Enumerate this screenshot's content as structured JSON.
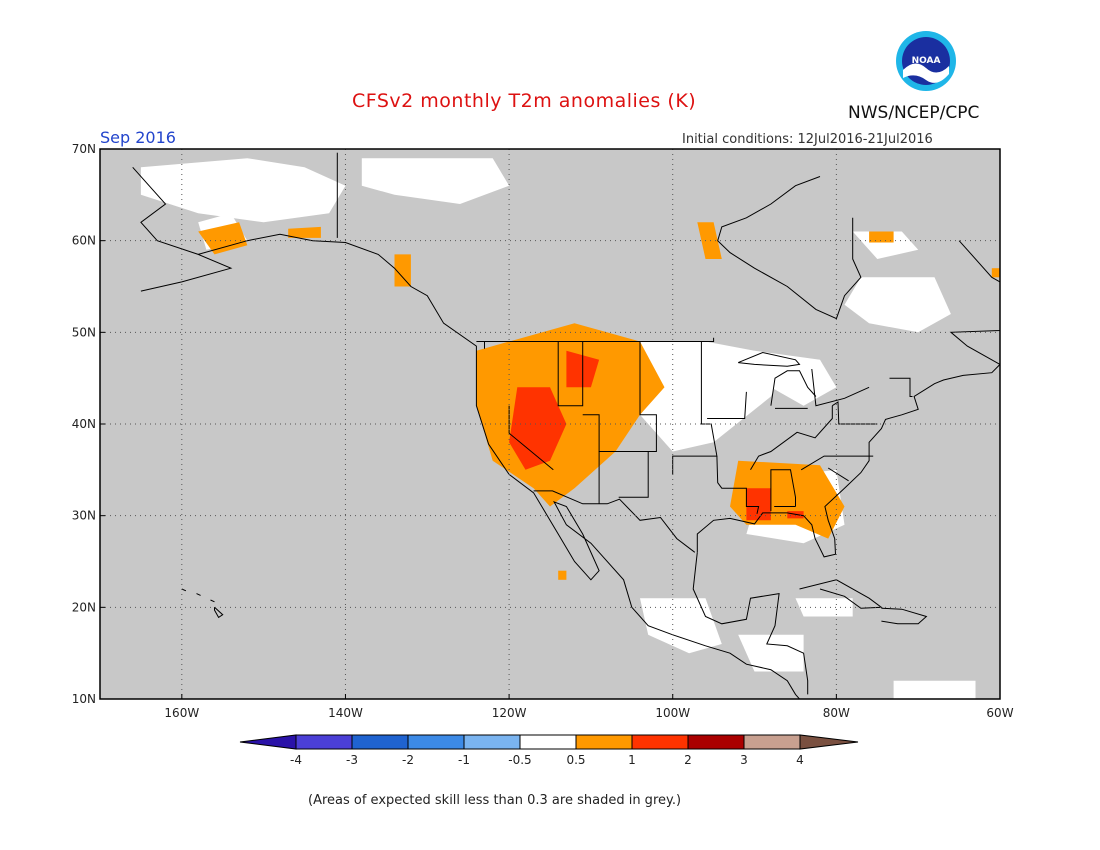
{
  "title": "CFSv2 monthly T2m anomalies (K)",
  "month": "Sep 2016",
  "initial_conditions": "Initial conditions: 12Jul2016-21Jul2016",
  "agency": "NWS/NCEP/CPC",
  "logo_text": "NOAA",
  "footnote": "(Areas of expected skill less than 0.3 are shaded in grey.)",
  "map": {
    "lon_range": [
      -170,
      -60
    ],
    "lat_range": [
      10,
      70
    ],
    "lon_ticks": [
      "160W",
      "140W",
      "120W",
      "100W",
      "80W",
      "60W"
    ],
    "lat_ticks": [
      "70N",
      "60N",
      "50N",
      "40N",
      "30N",
      "20N",
      "10N"
    ],
    "grid": "dotted",
    "background_color": "#c8c8c8"
  },
  "colorbar": {
    "labels": [
      "-4",
      "-3",
      "-2",
      "-1",
      "-0.5",
      "0.5",
      "1",
      "2",
      "3",
      "4"
    ],
    "colors": [
      "#2a12a8",
      "#4b3fd6",
      "#1f63d0",
      "#3c8ae6",
      "#7ab4f0",
      "#ffffff",
      "#ff9900",
      "#ff3300",
      "#aa0000",
      "#c8a090",
      "#7a5040"
    ]
  }
}
